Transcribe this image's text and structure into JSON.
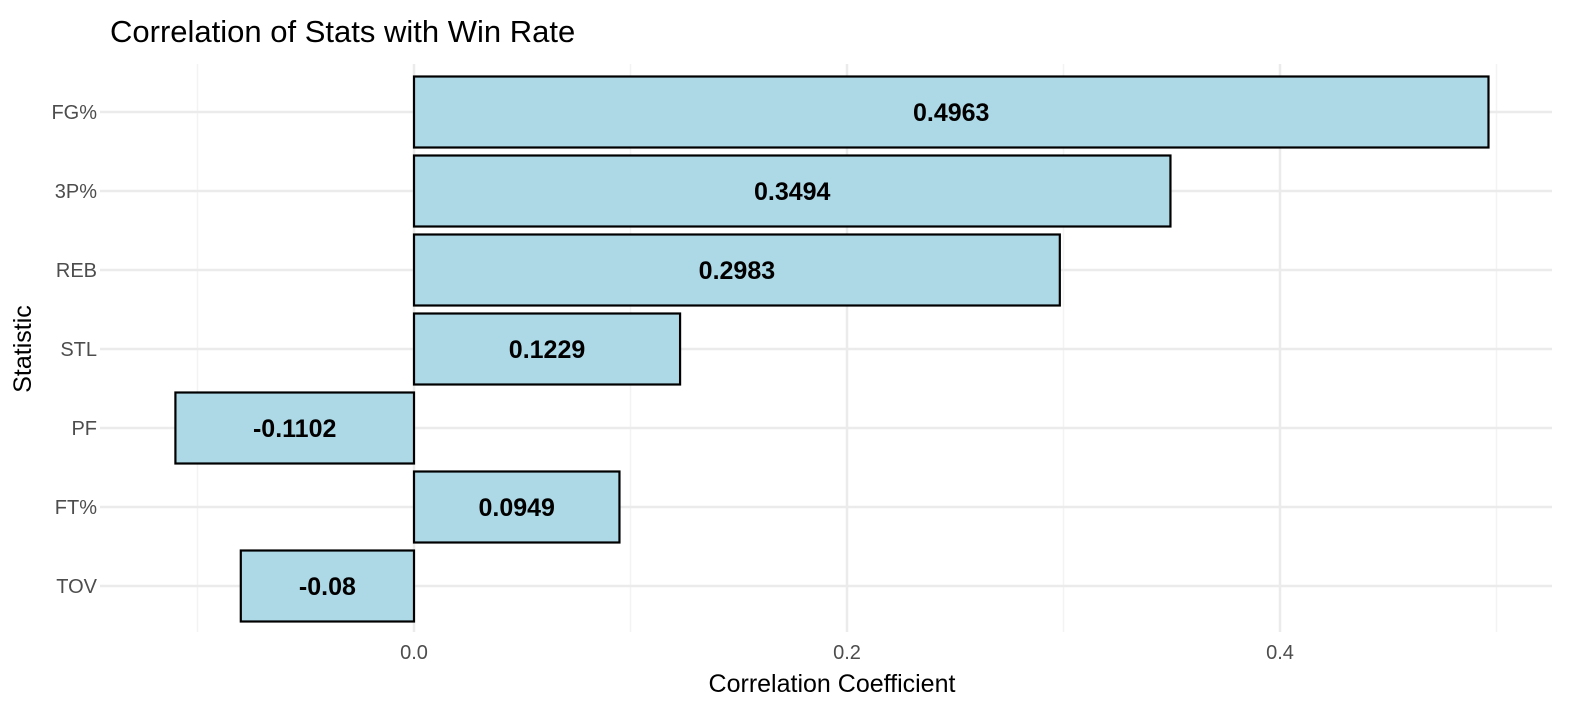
{
  "chart_data": {
    "type": "bar",
    "orientation": "horizontal",
    "title": "Correlation of Stats with Win Rate",
    "xlabel": "Correlation Coefficient",
    "ylabel": "Statistic",
    "categories": [
      "FG%",
      "3P%",
      "REB",
      "STL",
      "PF",
      "FT%",
      "TOV"
    ],
    "values": [
      0.4963,
      0.3494,
      0.2983,
      0.1229,
      -0.1102,
      0.0949,
      -0.08
    ],
    "data_labels": [
      "0.4963",
      "0.3494",
      "0.2983",
      "0.1229",
      "-0.1102",
      "0.0949",
      "-0.08"
    ],
    "xlim": [
      -0.12,
      0.52
    ],
    "x_ticks": [
      0.0,
      0.2,
      0.4
    ],
    "x_tick_labels": [
      "0.0",
      "0.2",
      "0.4"
    ],
    "grid": true,
    "legend": "none",
    "colors": {
      "bar_fill": "#ADD8E6",
      "bar_stroke": "#000000",
      "grid_major": "#EBEBEB",
      "grid_minor": "#F3F3F3",
      "tick_text": "#4D4D4D",
      "label_text": "#000000"
    }
  }
}
